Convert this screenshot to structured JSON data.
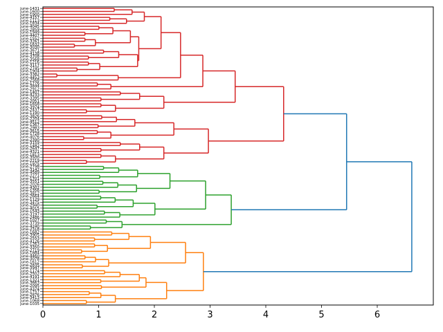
{
  "chart_data": {
    "type": "dendrogram",
    "title": "",
    "xlabel": "",
    "ylabel": "",
    "xlim": [
      0,
      7
    ],
    "x_ticks": [
      "0",
      "1",
      "2",
      "3",
      "4",
      "5",
      "6"
    ],
    "orientation": "left",
    "colors": {
      "above_threshold": "#1f77b4",
      "cluster1": "#d62728",
      "cluster2": "#2ca02c",
      "cluster3": "#ff7f0e"
    },
    "leaf_labels": [
      "june-1431",
      "june-1600",
      "june-1900",
      "june-4157",
      "june-1113",
      "june-1834",
      "june-4045",
      "june-2859",
      "june-1949",
      "june-4407",
      "june-1552",
      "june-3261",
      "june-1632",
      "june-3030",
      "june-3671",
      "june-4138",
      "june-3708",
      "june-3568",
      "june-1216",
      "june-3117",
      "june-2745",
      "june-1904",
      "june-3382",
      "june-4453",
      "june-2568",
      "june-1776",
      "june-3844",
      "june-2912",
      "june-1407",
      "june-4233",
      "june-3395",
      "june-2051",
      "june-1658",
      "june-3974",
      "june-2437",
      "june-1190",
      "june-3826",
      "june-2204",
      "june-4512",
      "june-1367",
      "june-2983",
      "june-3615",
      "june-1728",
      "june-4076",
      "june-2390",
      "june-3159",
      "june-1482",
      "june-2647",
      "june-4321",
      "june-1813",
      "june-3500",
      "june-2219",
      "june-1975",
      "june-2798",
      "june-3142",
      "june-4589",
      "june-2271",
      "june-1701",
      "june-3551",
      "june-2026",
      "june-4302",
      "june-1356",
      "june-3812",
      "june-2664",
      "june-1129",
      "june-3475",
      "june-2940",
      "june-4015",
      "june-1543",
      "june-3197",
      "june-2486",
      "june-1027",
      "june-3739",
      "june-4240",
      "june-2318",
      "june-1682",
      "june-3905",
      "june-2553",
      "june-4126",
      "june-1263",
      "june-3350",
      "june-2719",
      "june-1884",
      "june-4460",
      "june-3078",
      "june-1612",
      "june-2835",
      "june-3947",
      "june-1174",
      "june-2502",
      "june-4191",
      "june-1321",
      "june-3663",
      "june-2095",
      "june-4374",
      "june-1757",
      "june-2876",
      "june-3413",
      "june-1068",
      "june-1035"
    ],
    "tree": {
      "h": 6.62,
      "color": "#1f77b4",
      "c": [
        {
          "h": 5.45,
          "color": "#1f77b4",
          "c": [
            {
              "h": 4.32,
              "color": "#d62728",
              "c": [
                {
                  "h": 3.45,
                  "c": [
                    {
                      "h": 2.87,
                      "c": [
                        {
                          "h": 2.47,
                          "c": [
                            {
                              "h": 2.12,
                              "c": [
                                {
                                  "h": 1.82,
                                  "c": [
                                    {
                                      "n": 3,
                                      "h": 1.6
                                    },
                                    {
                                      "n": 3,
                                      "h": 1.5
                                    }
                                  ]
                                },
                                {
                                  "h": 1.72,
                                  "c": [
                                    {
                                      "n": 8,
                                      "h": 1.57
                                    },
                                    {
                                      "n": 8,
                                      "h": 1.7
                                    }
                                  ]
                                }
                              ]
                            },
                            {
                              "h": 1.35,
                              "c": [
                                {
                                  "n": 2,
                                  "h": 0.25
                                },
                                {
                                  "n": 1
                                }
                              ]
                            }
                          ]
                        },
                        {
                          "n": 3,
                          "h": 1.22
                        }
                      ]
                    },
                    {
                      "n": 8,
                      "h": 2.17
                    }
                  ]
                },
                {
                  "h": 2.97,
                  "c": [
                    {
                      "h": 2.35,
                      "c": [
                        {
                          "n": 5,
                          "h": 1.65
                        },
                        {
                          "n": 4,
                          "h": 1.22
                        }
                      ]
                    },
                    {
                      "n": 8,
                      "h": 2.17
                    }
                  ]
                }
              ]
            },
            {
              "h": 3.38,
              "color": "#2ca02c",
              "c": [
                {
                  "h": 2.92,
                  "c": [
                    {
                      "h": 2.28,
                      "c": [
                        {
                          "n": 5,
                          "h": 1.7
                        },
                        {
                          "n": 5,
                          "h": 1.68
                        }
                      ]
                    },
                    {
                      "h": 2.01,
                      "c": [
                        {
                          "n": 5,
                          "h": 1.62
                        },
                        {
                          "n": 3,
                          "h": 1.38
                        }
                      ]
                    }
                  ]
                },
                {
                  "n": 4,
                  "h": 1.42
                }
              ]
            }
          ]
        },
        {
          "h": 2.88,
          "color": "#ff7f0e",
          "c": [
            {
              "h": 2.56,
              "c": [
                {
                  "n": 8,
                  "h": 1.93
                },
                {
                  "n": 5,
                  "h": 1.18
                }
              ]
            },
            {
              "h": 2.22,
              "c": [
                {
                  "h": 1.85,
                  "c": [
                    {
                      "n": 5,
                      "h": 1.73
                    },
                    {
                      "n": 2,
                      "h": 1.05
                    }
                  ]
                },
                {
                  "n": 5,
                  "h": 1.3
                }
              ]
            }
          ]
        }
      ]
    }
  }
}
